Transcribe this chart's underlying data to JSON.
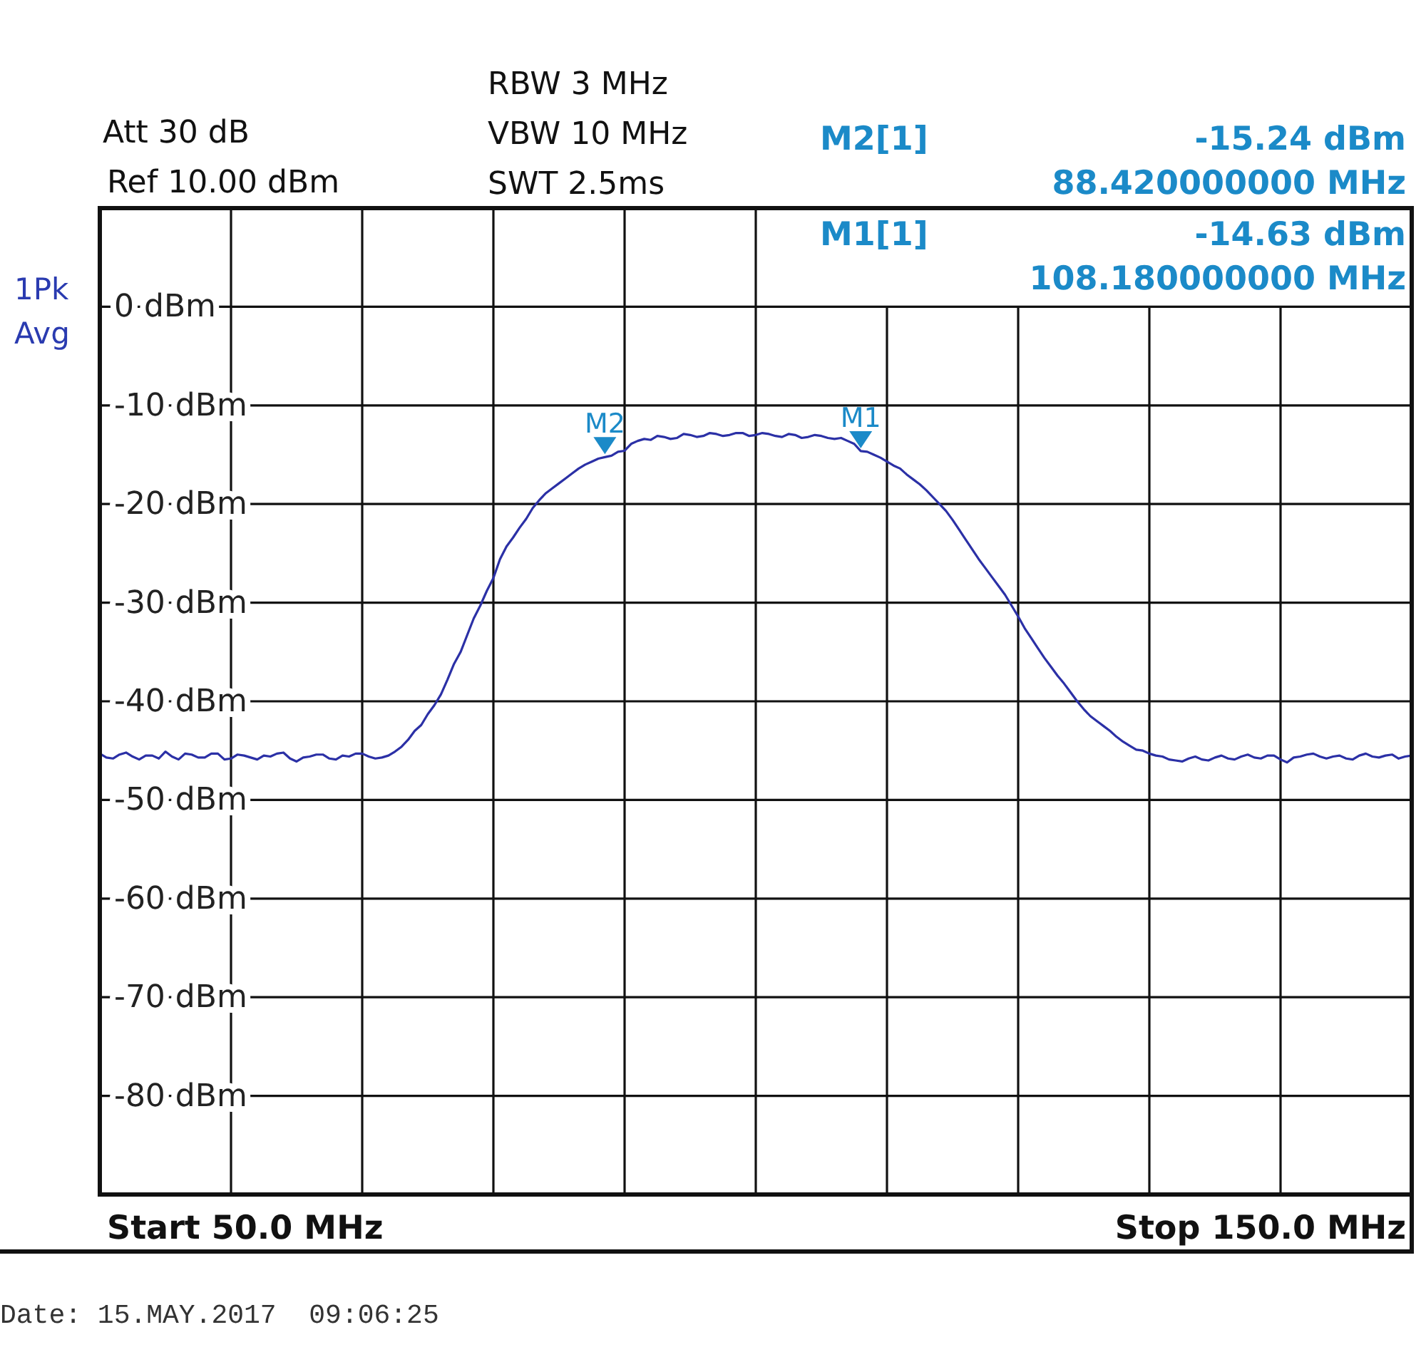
{
  "chart_data": {
    "type": "line",
    "categories": [
      null,
      null,
      null,
      null,
      null,
      null,
      null,
      null,
      null,
      null,
      null,
      null,
      null,
      null,
      null,
      null,
      null,
      null,
      null,
      null,
      null,
      null,
      null,
      null,
      null,
      null,
      null,
      null,
      null,
      null,
      null,
      null,
      null,
      null,
      null,
      null,
      null,
      null,
      null,
      null,
      null,
      null,
      null,
      null,
      null,
      null,
      null,
      null,
      null,
      null,
      null,
      null,
      null,
      null,
      null,
      null,
      null,
      null,
      null,
      null,
      null,
      null,
      null,
      null,
      null,
      null,
      null,
      null,
      null,
      null,
      null,
      null,
      null,
      null,
      null,
      null,
      null,
      null,
      null,
      null,
      null,
      null,
      null,
      null,
      null,
      null,
      null,
      null,
      null,
      null,
      null,
      null,
      null,
      null,
      null,
      null,
      null,
      null,
      null,
      null,
      null,
      null,
      null,
      null,
      null,
      null,
      null,
      null,
      null,
      null,
      null,
      null,
      null,
      null,
      null,
      null,
      null,
      null,
      null,
      null,
      null,
      null,
      null,
      null,
      null,
      null,
      null,
      null,
      null,
      null,
      null,
      null,
      null,
      null,
      null,
      null,
      null,
      null,
      null,
      null,
      null,
      null,
      null,
      null,
      null,
      null,
      null,
      null,
      null,
      null,
      null,
      null,
      null,
      null,
      null,
      null,
      null,
      null,
      null,
      null,
      null,
      null,
      null,
      null,
      null,
      null,
      null,
      null,
      null,
      null,
      null,
      null,
      null,
      null,
      null,
      null,
      null,
      null,
      null,
      null,
      null,
      null,
      null,
      null,
      null,
      null,
      null,
      null,
      null,
      null,
      null,
      null,
      null,
      null,
      null,
      null,
      null,
      null,
      null,
      null,
      null
    ],
    "ylim": [
      -90,
      10
    ],
    "yticks": [
      {
        "value": 0,
        "label": "0 dBm"
      },
      {
        "value": -10,
        "label": "-10 dBm"
      },
      {
        "value": -20,
        "label": "-20 dBm"
      },
      {
        "value": -30,
        "label": "-30 dBm"
      },
      {
        "value": -40,
        "label": "-40 dBm"
      },
      {
        "value": -50,
        "label": "-50 dBm"
      },
      {
        "value": -60,
        "label": "-60 dBm"
      },
      {
        "value": -70,
        "label": "-70 dBm"
      },
      {
        "value": -80,
        "label": "-80 dBm"
      }
    ],
    "grid": true,
    "tick_labels": "y",
    "series": [
      {
        "color": "#2b30a6",
        "values": [
          -45.3,
          -45.7,
          -45.8,
          -45.4,
          -45.2,
          -45.6,
          -45.9,
          -45.5,
          -45.5,
          -45.8,
          -45.1,
          -45.6,
          -45.9,
          -45.3,
          -45.4,
          -45.7,
          -45.7,
          -45.3,
          -45.3,
          -45.9,
          -45.8,
          -45.4,
          -45.5,
          -45.7,
          -45.9,
          -45.5,
          -45.6,
          -45.3,
          -45.2,
          -45.8,
          -46.1,
          -45.7,
          -45.6,
          -45.4,
          -45.4,
          -45.8,
          -45.9,
          -45.5,
          -45.6,
          -45.3,
          -45.3,
          -45.6,
          -45.8,
          -45.7,
          -45.5,
          -45.1,
          -44.6,
          -43.9,
          -43.0,
          -42.4,
          -41.3,
          -40.4,
          -39.3,
          -37.8,
          -36.2,
          -35.0,
          -33.3,
          -31.6,
          -30.3,
          -28.8,
          -27.5,
          -25.6,
          -24.3,
          -23.4,
          -22.4,
          -21.5,
          -20.4,
          -19.6,
          -18.9,
          -18.4,
          -17.9,
          -17.4,
          -16.9,
          -16.4,
          -16.0,
          -15.7,
          -15.4,
          -15.24,
          -15.1,
          -14.7,
          -14.6,
          -13.9,
          -13.6,
          -13.4,
          -13.5,
          -13.1,
          -13.2,
          -13.4,
          -13.3,
          -12.9,
          -13.0,
          -13.2,
          -13.1,
          -12.8,
          -12.9,
          -13.1,
          -13.0,
          -12.8,
          -12.8,
          -13.1,
          -13.0,
          -12.8,
          -12.9,
          -13.1,
          -13.2,
          -12.9,
          -13.0,
          -13.3,
          -13.2,
          -13.0,
          -13.1,
          -13.3,
          -13.4,
          -13.3,
          -13.6,
          -13.9,
          -14.63,
          -14.7,
          -15.0,
          -15.3,
          -15.7,
          -16.1,
          -16.4,
          -17.0,
          -17.5,
          -18.0,
          -18.6,
          -19.3,
          -20.0,
          -20.7,
          -21.6,
          -22.6,
          -23.6,
          -24.6,
          -25.6,
          -26.5,
          -27.4,
          -28.3,
          -29.2,
          -30.3,
          -31.4,
          -32.6,
          -33.6,
          -34.6,
          -35.6,
          -36.5,
          -37.4,
          -38.2,
          -39.1,
          -40.0,
          -40.8,
          -41.5,
          -42.0,
          -42.5,
          -43.0,
          -43.6,
          -44.1,
          -44.5,
          -44.9,
          -45.0,
          -45.3,
          -45.5,
          -45.6,
          -45.9,
          -46.0,
          -46.1,
          -45.8,
          -45.6,
          -45.9,
          -46.0,
          -45.7,
          -45.5,
          -45.8,
          -45.9,
          -45.6,
          -45.4,
          -45.7,
          -45.8,
          -45.5,
          -45.5,
          -45.9,
          -46.2,
          -45.7,
          -45.6,
          -45.4,
          -45.3,
          -45.6,
          -45.8,
          -45.6,
          -45.5,
          -45.8,
          -45.9,
          -45.5,
          -45.3,
          -45.6,
          -45.7,
          -45.5,
          -45.4,
          -45.8,
          -45.6,
          -45.5
        ]
      }
    ],
    "annotations": [
      "Att 30 dB",
      "Ref 10.00 dBm",
      "RBW 3 MHz",
      "VBW 10 MHz",
      "SWT 2.5ms",
      "1Pk Avg",
      "M2[1]",
      "-15.24 dBm",
      "88.420000000 MHz",
      "M1[1]",
      "-14.63 dBm",
      "108.180000000 MHz",
      "Start 50.0 MHz",
      "Stop 150.0 MHz",
      "Date: 15.MAY.2017  09:06:25",
      {
        "text": "M2",
        "y": -15.24
      },
      {
        "text": "M1",
        "y": -14.63
      }
    ]
  }
}
